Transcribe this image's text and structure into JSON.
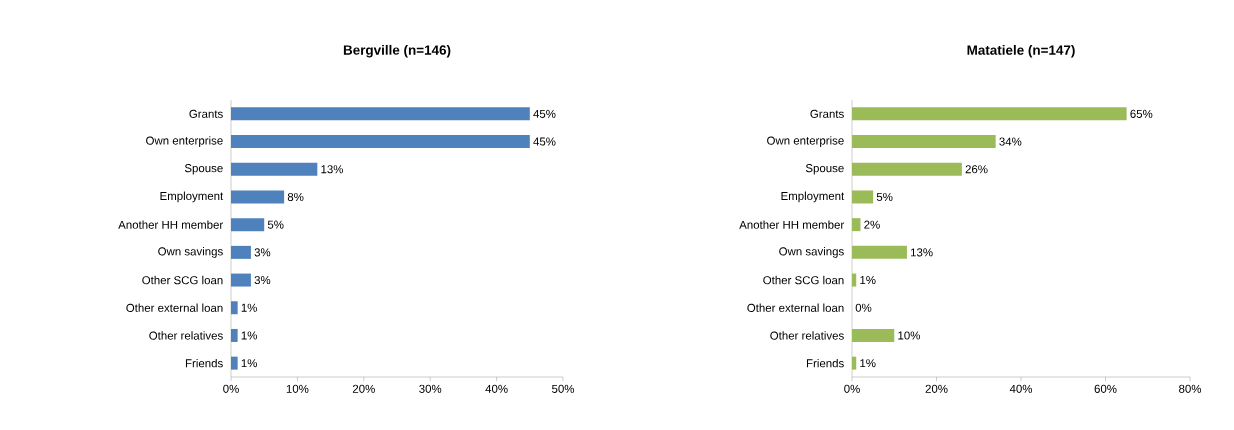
{
  "chart_data": [
    {
      "type": "bar",
      "orientation": "horizontal",
      "title": "Bergville (n=146)",
      "categories": [
        "Grants",
        "Own enterprise",
        "Spouse",
        "Employment",
        "Another HH member",
        "Own savings",
        "Other SCG loan",
        "Other external loan",
        "Other relatives",
        "Friends"
      ],
      "values": [
        45,
        45,
        13,
        8,
        5,
        3,
        3,
        1,
        1,
        1
      ],
      "value_labels": [
        "45%",
        "45%",
        "13%",
        "8%",
        "5%",
        "3%",
        "3%",
        "1%",
        "1%",
        "1%"
      ],
      "color": "#4f81bd",
      "xlim": [
        0,
        50
      ],
      "xticks": [
        {
          "value": 0,
          "label": "0%"
        },
        {
          "value": 10,
          "label": "10%"
        },
        {
          "value": 20,
          "label": "20%"
        },
        {
          "value": 30,
          "label": "30%"
        },
        {
          "value": 40,
          "label": "40%"
        },
        {
          "value": 50,
          "label": "50%"
        }
      ],
      "grid": false
    },
    {
      "type": "bar",
      "orientation": "horizontal",
      "title": "Matatiele (n=147)",
      "categories": [
        "Grants",
        "Own enterprise",
        "Spouse",
        "Employment",
        "Another HH member",
        "Own savings",
        "Other SCG loan",
        "Other external loan",
        "Other relatives",
        "Friends"
      ],
      "values": [
        65,
        34,
        26,
        5,
        2,
        13,
        1,
        0,
        10,
        1
      ],
      "value_labels": [
        "65%",
        "34%",
        "26%",
        "5%",
        "2%",
        "13%",
        "1%",
        "0%",
        "10%",
        "1%"
      ],
      "color": "#9bbb59",
      "xlim": [
        0,
        80
      ],
      "xticks": [
        {
          "value": 0,
          "label": "0%"
        },
        {
          "value": 20,
          "label": "20%"
        },
        {
          "value": 40,
          "label": "40%"
        },
        {
          "value": 60,
          "label": "60%"
        },
        {
          "value": 80,
          "label": "80%"
        }
      ],
      "grid": false
    }
  ]
}
